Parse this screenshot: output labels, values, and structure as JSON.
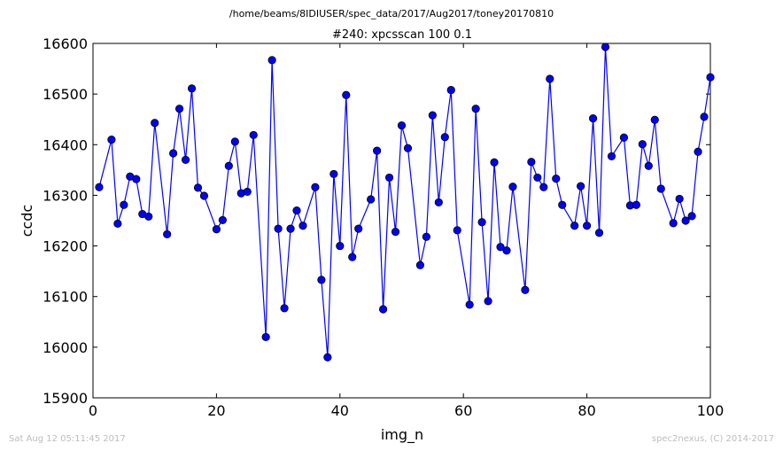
{
  "header": {
    "path": "/home/beams/8IDIUSER/spec_data/2017/Aug2017/toney20170810"
  },
  "footer": {
    "timestamp": "Sat Aug 12 05:11:45 2017",
    "credit": "spec2nexus, (C) 2014-2017"
  },
  "chart_data": {
    "type": "line",
    "title": "#240: xpcsscan 100 0.1",
    "xlabel": "img_n",
    "ylabel": "ccdc",
    "xlim": [
      0,
      100
    ],
    "ylim": [
      15900,
      16600
    ],
    "xticks": [
      "0",
      "20",
      "40",
      "60",
      "80",
      "100"
    ],
    "yticks": [
      "15900",
      "16000",
      "16100",
      "16200",
      "16300",
      "16400",
      "16500",
      "16600"
    ],
    "grid": false,
    "marker": "circle",
    "color": "#0000ff",
    "x": [
      1,
      3,
      4,
      5,
      6,
      7,
      8,
      9,
      10,
      12,
      13,
      14,
      15,
      16,
      17,
      18,
      20,
      21,
      22,
      23,
      24,
      25,
      26,
      28,
      29,
      30,
      31,
      32,
      33,
      34,
      36,
      37,
      38,
      39,
      40,
      41,
      42,
      43,
      45,
      46,
      47,
      48,
      49,
      50,
      51,
      53,
      54,
      55,
      56,
      57,
      58,
      59,
      61,
      62,
      63,
      64,
      65,
      66,
      67,
      68,
      70,
      71,
      72,
      73,
      74,
      75,
      76,
      78,
      79,
      80,
      81,
      82,
      83,
      84,
      86,
      87,
      88,
      89,
      90,
      91,
      92,
      94,
      95,
      96,
      97,
      98,
      99,
      100
    ],
    "y": [
      16316,
      16410,
      16244,
      16281,
      16337,
      16332,
      16263,
      16258,
      16443,
      16223,
      16383,
      16471,
      16370,
      16511,
      16315,
      16299,
      16233,
      16251,
      16358,
      16406,
      16304,
      16307,
      16419,
      16020,
      16567,
      16234,
      16077,
      16234,
      16270,
      16240,
      16316,
      16133,
      15980,
      16342,
      16200,
      16498,
      16178,
      16234,
      16292,
      16388,
      16075,
      16335,
      16228,
      16438,
      16393,
      16162,
      16218,
      16458,
      16286,
      16415,
      16508,
      16231,
      16084,
      16471,
      16247,
      16091,
      16365,
      16198,
      16191,
      16317,
      16113,
      16366,
      16335,
      16316,
      16530,
      16333,
      16281,
      16240,
      16318,
      16240,
      16452,
      16226,
      16593,
      16377,
      16414,
      16280,
      16281,
      16401,
      16358,
      16449,
      16313,
      16245,
      16293,
      16250,
      16259,
      16386,
      16455,
      16533
    ]
  }
}
